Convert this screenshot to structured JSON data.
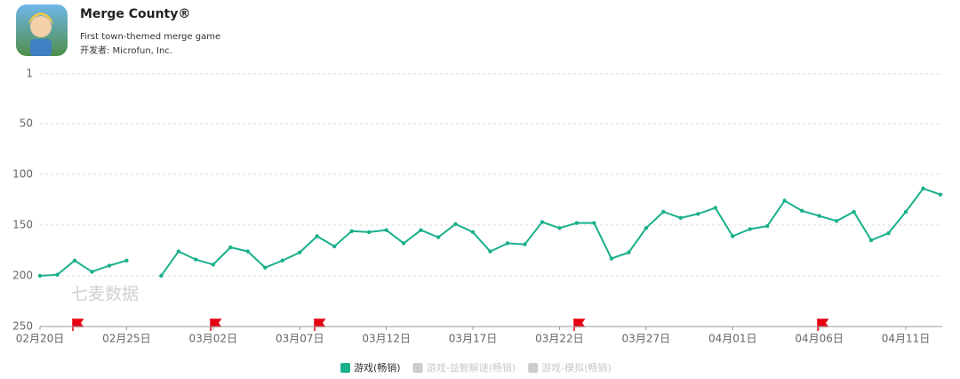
{
  "app": {
    "name": "Merge County®",
    "subtitle": "First town-themed merge game",
    "developer": "开发者: Microfun, Inc."
  },
  "chart_data": {
    "type": "line",
    "watermark": "七麦数据",
    "categories": [
      "02月20日",
      null,
      null,
      null,
      null,
      "02月25日",
      null,
      null,
      null,
      null,
      "03月02日",
      null,
      null,
      null,
      null,
      "03月07日",
      null,
      null,
      null,
      null,
      "03月12日",
      null,
      null,
      null,
      null,
      "03月17日",
      null,
      null,
      null,
      null,
      "03月22日",
      null,
      null,
      null,
      null,
      "03月27日",
      null,
      null,
      null,
      null,
      "04月01日",
      null,
      null,
      null,
      null,
      "04月06日",
      null,
      null,
      null,
      null,
      "04月11日",
      null,
      null
    ],
    "series": [
      {
        "name": "游戏(畅销)",
        "color": "#1ab08c",
        "values": [
          200,
          199,
          185,
          196,
          190,
          185,
          null,
          200,
          176,
          184,
          189,
          172,
          176,
          192,
          185,
          177,
          161,
          171,
          156,
          157,
          155,
          168,
          155,
          162,
          149,
          157,
          176,
          168,
          169,
          147,
          153,
          148,
          148,
          183,
          177,
          153,
          137,
          143,
          139,
          133,
          161,
          154,
          151,
          126,
          136,
          141,
          146,
          137,
          165,
          158,
          137,
          114,
          120
        ]
      }
    ],
    "inactive_legend": [
      {
        "name": "游戏-益智解谜(畅销)",
        "color": "#cccccc"
      },
      {
        "name": "游戏-模拟(畅销)",
        "color": "#cccccc"
      }
    ],
    "ylim": [
      250,
      1
    ],
    "yticks": [
      1,
      50,
      100,
      150,
      200,
      250
    ],
    "grid": true
  }
}
